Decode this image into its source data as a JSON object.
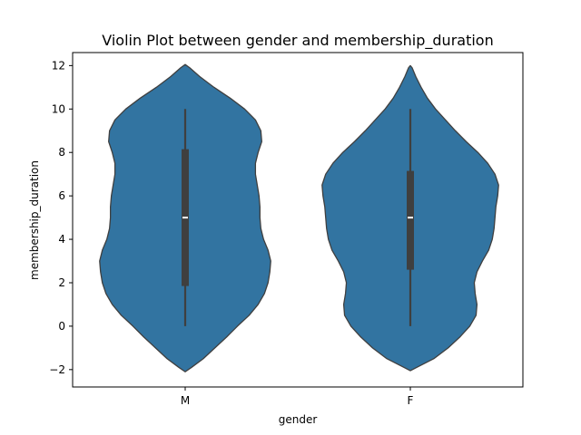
{
  "chart_data": {
    "type": "violin",
    "title": "Violin Plot between gender and membership_duration",
    "xlabel": "gender",
    "ylabel": "membership_duration",
    "categories": [
      "M",
      "F"
    ],
    "ylim": [
      -2.8,
      12.6
    ],
    "yticks": [
      -2,
      0,
      2,
      4,
      6,
      8,
      10,
      12
    ],
    "ytick_labels": [
      "−2",
      "0",
      "2",
      "4",
      "6",
      "8",
      "10",
      "12"
    ],
    "grid": false,
    "colors": {
      "violin_fill": "#3274a1",
      "violin_edge": "#3f3f3f",
      "box": "#3f3f3f",
      "median": "#ffffff"
    },
    "violins": [
      {
        "category": "M",
        "box": {
          "min": 0,
          "q1": 1.85,
          "median": 5,
          "q3": 8.15,
          "max": 10
        },
        "profile": [
          [
            -2.1,
            0.0
          ],
          [
            -1.9,
            0.07
          ],
          [
            -1.5,
            0.2
          ],
          [
            -1.0,
            0.33
          ],
          [
            -0.5,
            0.46
          ],
          [
            0.0,
            0.58
          ],
          [
            0.5,
            0.71
          ],
          [
            1.0,
            0.81
          ],
          [
            1.5,
            0.88
          ],
          [
            2.0,
            0.92
          ],
          [
            2.5,
            0.94
          ],
          [
            3.0,
            0.95
          ],
          [
            3.5,
            0.92
          ],
          [
            4.0,
            0.87
          ],
          [
            4.5,
            0.84
          ],
          [
            5.0,
            0.83
          ],
          [
            5.5,
            0.83
          ],
          [
            6.0,
            0.82
          ],
          [
            6.5,
            0.8
          ],
          [
            7.0,
            0.78
          ],
          [
            7.5,
            0.78
          ],
          [
            8.0,
            0.81
          ],
          [
            8.5,
            0.85
          ],
          [
            9.0,
            0.84
          ],
          [
            9.5,
            0.78
          ],
          [
            10.0,
            0.66
          ],
          [
            10.5,
            0.5
          ],
          [
            11.0,
            0.32
          ],
          [
            11.5,
            0.16
          ],
          [
            11.9,
            0.05
          ],
          [
            12.05,
            0.0
          ]
        ]
      },
      {
        "category": "F",
        "box": {
          "min": 0,
          "q1": 2.6,
          "median": 5,
          "q3": 7.15,
          "max": 10
        },
        "profile": [
          [
            -2.05,
            0.0
          ],
          [
            -1.9,
            0.07
          ],
          [
            -1.5,
            0.26
          ],
          [
            -1.0,
            0.42
          ],
          [
            -0.5,
            0.55
          ],
          [
            0.0,
            0.66
          ],
          [
            0.5,
            0.73
          ],
          [
            1.0,
            0.74
          ],
          [
            1.5,
            0.72
          ],
          [
            2.0,
            0.71
          ],
          [
            2.5,
            0.74
          ],
          [
            3.0,
            0.8
          ],
          [
            3.5,
            0.87
          ],
          [
            4.0,
            0.91
          ],
          [
            4.5,
            0.93
          ],
          [
            5.0,
            0.94
          ],
          [
            5.5,
            0.95
          ],
          [
            6.0,
            0.97
          ],
          [
            6.5,
            0.98
          ],
          [
            7.0,
            0.94
          ],
          [
            7.5,
            0.86
          ],
          [
            8.0,
            0.75
          ],
          [
            8.5,
            0.62
          ],
          [
            9.0,
            0.5
          ],
          [
            9.5,
            0.39
          ],
          [
            10.0,
            0.28
          ],
          [
            10.5,
            0.19
          ],
          [
            11.0,
            0.12
          ],
          [
            11.5,
            0.06
          ],
          [
            11.9,
            0.02
          ],
          [
            12.0,
            0.0
          ]
        ]
      }
    ]
  }
}
